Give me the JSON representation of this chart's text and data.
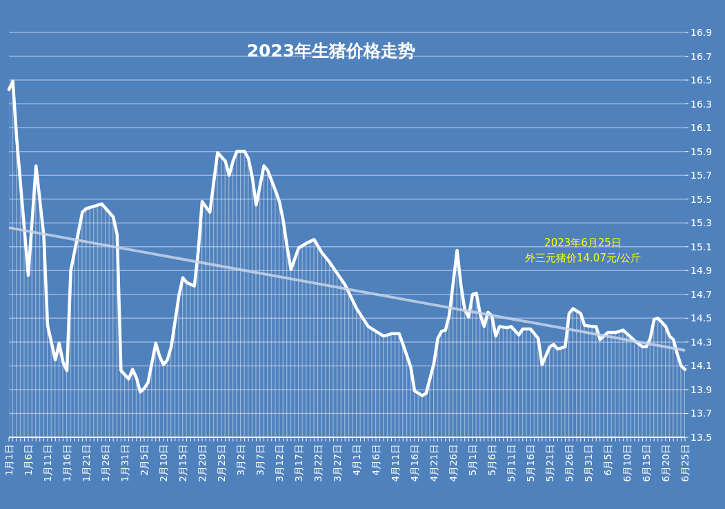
{
  "chart_data": {
    "type": "area",
    "title": "2023年生猪价格走势",
    "annotations": [
      "2023年6月25日",
      "外三元猪价14.07元/公斤"
    ],
    "series": [
      {
        "color": "#ffffff",
        "x": [
          "--01-01",
          "--01-02",
          "--01-03",
          "--01-06",
          "--01-08",
          "--01-10",
          "--01-11",
          "--01-13",
          "--01-14",
          "--01-15",
          "--01-16",
          "--01-17",
          "--01-20",
          "--01-21",
          "--01-23",
          "--01-25",
          "--01-28",
          "--01-29",
          "--01-30",
          "--02-01",
          "--02-02",
          "--02-03",
          "--02-04",
          "--02-05",
          "--02-06",
          "--02-08",
          "--02-09",
          "--02-10",
          "--02-11",
          "--02-12",
          "--02-14",
          "--02-15",
          "--02-16",
          "--02-18",
          "--02-19",
          "--02-20",
          "--02-22",
          "--02-24",
          "--02-26",
          "--02-27",
          "--02-28",
          "--03-01",
          "--03-03",
          "--03-04",
          "--03-05",
          "--03-06",
          "--03-08",
          "--03-09",
          "--03-11",
          "--03-12",
          "--03-13",
          "--03-14",
          "--03-15",
          "--03-17",
          "--03-19",
          "--03-21",
          "--03-23",
          "--03-25",
          "--03-29",
          "--04-01",
          "--04-04",
          "--04-08",
          "--04-10",
          "--04-12",
          "--04-13",
          "--04-15",
          "--04-16",
          "--04-18",
          "--04-19",
          "--04-21",
          "--04-22",
          "--04-23",
          "--04-24",
          "--04-25",
          "--04-27",
          "--04-28",
          "--04-29",
          "--04-30",
          "--05-01",
          "--05-02",
          "--05-03",
          "--05-04",
          "--05-05",
          "--05-06",
          "--05-07",
          "--05-08",
          "--05-10",
          "--05-11",
          "--05-13",
          "--05-14",
          "--05-16",
          "--05-18",
          "--05-19",
          "--05-21",
          "--05-22",
          "--05-23",
          "--05-25",
          "--05-26",
          "--05-27",
          "--05-29",
          "--05-30",
          "--06-01",
          "--06-02",
          "--06-03",
          "--06-05",
          "--06-07",
          "--06-09",
          "--06-10",
          "--06-12",
          "--06-14",
          "--06-15",
          "--06-16",
          "--06-17",
          "--06-18",
          "--06-20",
          "--06-21",
          "--06-22",
          "--06-23",
          "--06-24",
          "--06-25"
        ],
        "values": [
          16.42,
          16.49,
          16.01,
          14.86,
          15.78,
          15.2,
          14.44,
          14.15,
          14.29,
          14.13,
          14.06,
          14.9,
          15.39,
          15.42,
          15.44,
          15.46,
          15.35,
          15.2,
          14.06,
          13.99,
          14.07,
          14.0,
          13.88,
          13.91,
          13.96,
          14.29,
          14.18,
          14.11,
          14.15,
          14.26,
          14.69,
          14.84,
          14.8,
          14.77,
          15.06,
          15.48,
          15.39,
          15.89,
          15.82,
          15.7,
          15.82,
          15.9,
          15.9,
          15.84,
          15.68,
          15.45,
          15.78,
          15.74,
          15.57,
          15.48,
          15.32,
          15.1,
          14.91,
          15.09,
          15.13,
          15.16,
          15.05,
          14.97,
          14.78,
          14.58,
          14.43,
          14.35,
          14.37,
          14.37,
          14.28,
          14.09,
          13.89,
          13.85,
          13.87,
          14.12,
          14.33,
          14.39,
          14.4,
          14.53,
          15.07,
          14.78,
          14.57,
          14.51,
          14.7,
          14.71,
          14.53,
          14.43,
          14.55,
          14.52,
          14.35,
          14.43,
          14.42,
          14.43,
          14.36,
          14.41,
          14.41,
          14.33,
          14.11,
          14.26,
          14.28,
          14.24,
          14.26,
          14.54,
          14.58,
          14.54,
          14.44,
          14.43,
          14.43,
          14.32,
          14.38,
          14.38,
          14.4,
          14.37,
          14.31,
          14.26,
          14.26,
          14.33,
          14.49,
          14.5,
          14.43,
          14.35,
          14.32,
          14.2,
          14.1,
          14.07
        ]
      },
      {
        "type": "line",
        "color": "#c6d4e8",
        "x": [
          "--01-01",
          "--06-25"
        ],
        "values": [
          15.26,
          14.23
        ]
      }
    ],
    "xlim": [
      "--01-01",
      "--06-25"
    ],
    "xticks": [
      {
        "value": "--01-01",
        "label": "1月1日"
      },
      {
        "value": "--01-06",
        "label": "1月6日"
      },
      {
        "value": "--01-11",
        "label": "1月11日"
      },
      {
        "value": "--01-16",
        "label": "1月16日"
      },
      {
        "value": "--01-21",
        "label": "1月21日"
      },
      {
        "value": "--01-26",
        "label": "1月26日"
      },
      {
        "value": "--01-31",
        "label": "1月31日"
      },
      {
        "value": "--02-05",
        "label": "2月5日"
      },
      {
        "value": "--02-10",
        "label": "2月10日"
      },
      {
        "value": "--02-15",
        "label": "2月15日"
      },
      {
        "value": "--02-20",
        "label": "2月20日"
      },
      {
        "value": "--02-25",
        "label": "2月25日"
      },
      {
        "value": "--03-02",
        "label": "3月2日"
      },
      {
        "value": "--03-07",
        "label": "3月7日"
      },
      {
        "value": "--03-12",
        "label": "3月12日"
      },
      {
        "value": "--03-17",
        "label": "3月17日"
      },
      {
        "value": "--03-22",
        "label": "3月22日"
      },
      {
        "value": "--03-27",
        "label": "3月27日"
      },
      {
        "value": "--04-01",
        "label": "4月1日"
      },
      {
        "value": "--04-06",
        "label": "4月6日"
      },
      {
        "value": "--04-11",
        "label": "4月11日"
      },
      {
        "value": "--04-16",
        "label": "4月16日"
      },
      {
        "value": "--04-21",
        "label": "4月21日"
      },
      {
        "value": "--04-26",
        "label": "4月26日"
      },
      {
        "value": "--05-01",
        "label": "5月1日"
      },
      {
        "value": "--05-06",
        "label": "5月6日"
      },
      {
        "value": "--05-11",
        "label": "5月11日"
      },
      {
        "value": "--05-16",
        "label": "5月16日"
      },
      {
        "value": "--05-21",
        "label": "5月21日"
      },
      {
        "value": "--05-26",
        "label": "5月26日"
      },
      {
        "value": "--05-31",
        "label": "5月31日"
      },
      {
        "value": "--06-05",
        "label": "6月5日"
      },
      {
        "value": "--06-10",
        "label": "6月10日"
      },
      {
        "value": "--06-15",
        "label": "6月15日"
      },
      {
        "value": "--06-20",
        "label": "6月20日"
      },
      {
        "value": "--06-25",
        "label": "6月25日"
      }
    ],
    "ylim": [
      13.5,
      16.9
    ],
    "yticks": [
      13.5,
      13.7,
      13.9,
      14.1,
      14.3,
      14.5,
      14.7,
      14.9,
      15.1,
      15.3,
      15.5,
      15.7,
      15.9,
      16.1,
      16.3,
      16.5,
      16.7,
      16.9
    ],
    "grid": "y"
  }
}
